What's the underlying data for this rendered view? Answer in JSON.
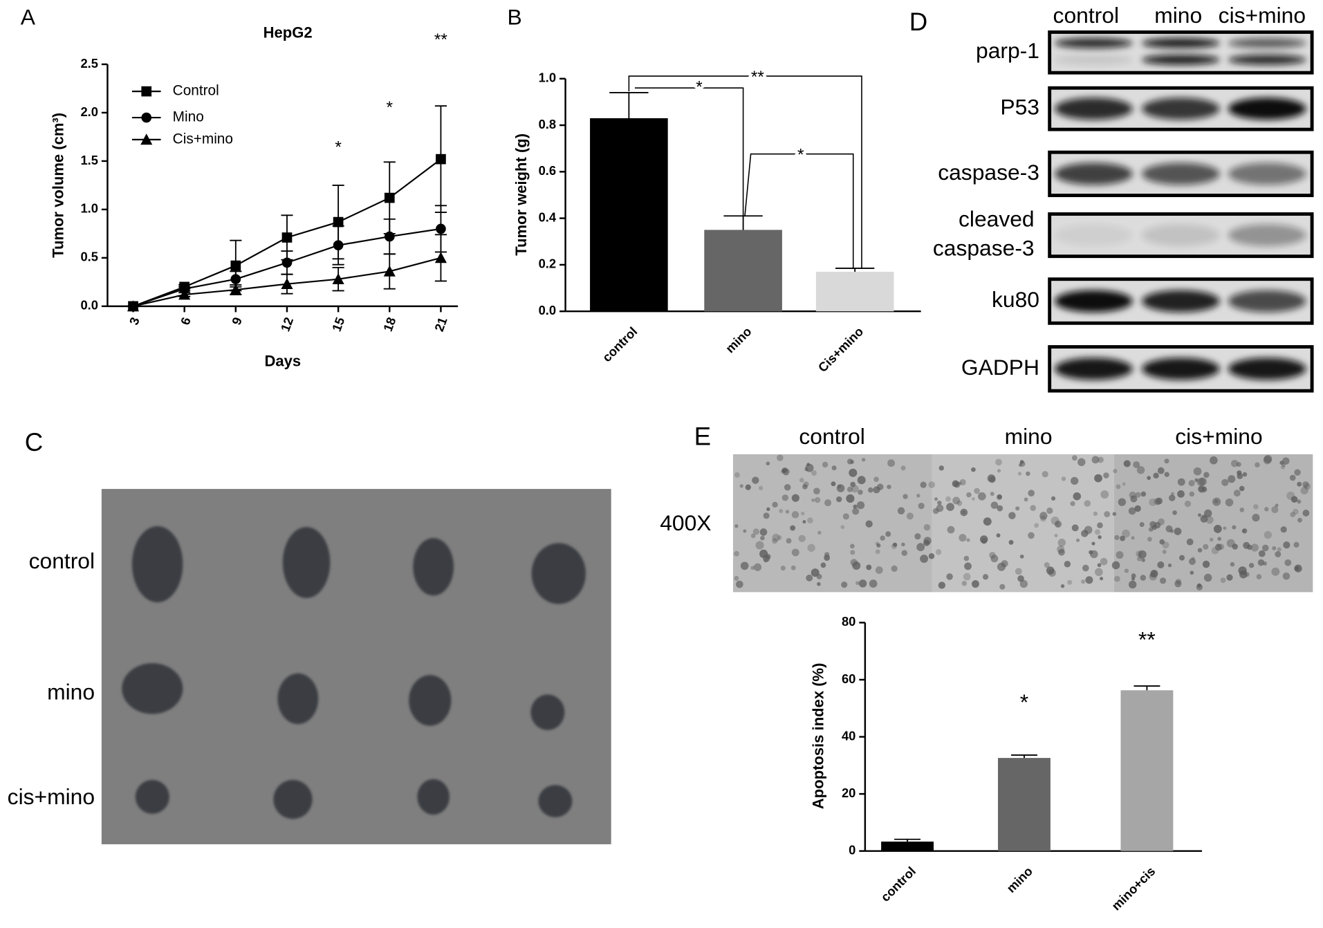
{
  "chart_data": [
    {
      "type": "line",
      "panel_label": "A",
      "title": "HepG2",
      "x_label": "Days",
      "y_label": "Tumor volume (cm³)",
      "x": [
        3,
        6,
        9,
        12,
        15,
        18,
        21
      ],
      "xlim": [
        1.5,
        22
      ],
      "xticks": [
        3,
        6,
        9,
        12,
        15,
        18,
        21
      ],
      "ylim": [
        0,
        2.5
      ],
      "yticks": [
        {
          "value": 0,
          "label": "0.0"
        },
        0.5,
        {
          "value": 1,
          "label": "1.0"
        },
        1.5,
        {
          "value": 2,
          "label": "2.0"
        },
        2.5
      ],
      "series": [
        {
          "name": "Control",
          "color": "#000000",
          "marker": "square",
          "values": [
            0,
            0.2,
            0.42,
            0.71,
            0.87,
            1.12,
            1.52
          ],
          "error": [
            0,
            0.02,
            0.26,
            0.23,
            0.38,
            0.37,
            0.55
          ]
        },
        {
          "name": "Mino",
          "color": "#000000",
          "marker": "circle",
          "values": [
            0,
            0.18,
            0.28,
            0.45,
            0.63,
            0.72,
            0.8
          ],
          "error": [
            0,
            0.02,
            0.08,
            0.12,
            0.2,
            0.18,
            0.24
          ]
        },
        {
          "name": "Cis+mino",
          "color": "#000000",
          "marker": "triangle",
          "values": [
            0,
            0.12,
            0.17,
            0.23,
            0.28,
            0.36,
            0.5
          ],
          "error": [
            0,
            0.02,
            0.05,
            0.1,
            0.12,
            0.18,
            0.24
          ]
        }
      ],
      "annotations": [
        {
          "x": 15,
          "text": "*"
        },
        {
          "x": 18,
          "text": "*"
        },
        {
          "x": 21,
          "text": "**"
        }
      ],
      "legend": "upper left"
    },
    {
      "type": "bar",
      "panel_label": "B",
      "y_label": "Tumor weight (g)",
      "categories": [
        "control",
        "mino",
        "Cis+mino"
      ],
      "values": [
        0.83,
        0.35,
        0.17
      ],
      "error": [
        0.11,
        0.06,
        0.015
      ],
      "colors": [
        "#000000",
        "#666666",
        "#d9d9d9"
      ],
      "ylim": [
        0,
        1
      ],
      "yticks": [
        {
          "value": 0,
          "label": "0.0"
        },
        0.2,
        0.4,
        0.6,
        0.8,
        {
          "value": 1,
          "label": "1.0"
        }
      ],
      "annotations": [
        "**",
        "*",
        "*"
      ]
    },
    {
      "type": "bar",
      "y_label": "Apoptosis index  (%)",
      "categories": [
        "control",
        "mino",
        "mino+cis"
      ],
      "values": [
        3.3,
        32.6,
        56.3
      ],
      "error": [
        0.8,
        1,
        1.5
      ],
      "colors": [
        "#000000",
        "#666666",
        "#a6a6a6"
      ],
      "ylim": [
        0,
        80
      ],
      "yticks": [
        0,
        20,
        40,
        60,
        80
      ],
      "annotations": [
        null,
        "*",
        "**"
      ]
    }
  ],
  "panel_c": {
    "panel_label": "C",
    "rows": [
      "control",
      "mino",
      "cis+mino"
    ]
  },
  "panel_d": {
    "panel_label": "D",
    "lanes": [
      "control",
      "mino",
      "cis+mino"
    ],
    "rows": [
      "parp-1",
      "P53",
      "caspase-3",
      [
        "cleaved",
        "caspase-3"
      ],
      "ku80",
      "GADPH"
    ]
  },
  "panel_e": {
    "panel_label": "E",
    "magnification": "400X",
    "images": [
      "control",
      "mino",
      "cis+mino"
    ]
  }
}
